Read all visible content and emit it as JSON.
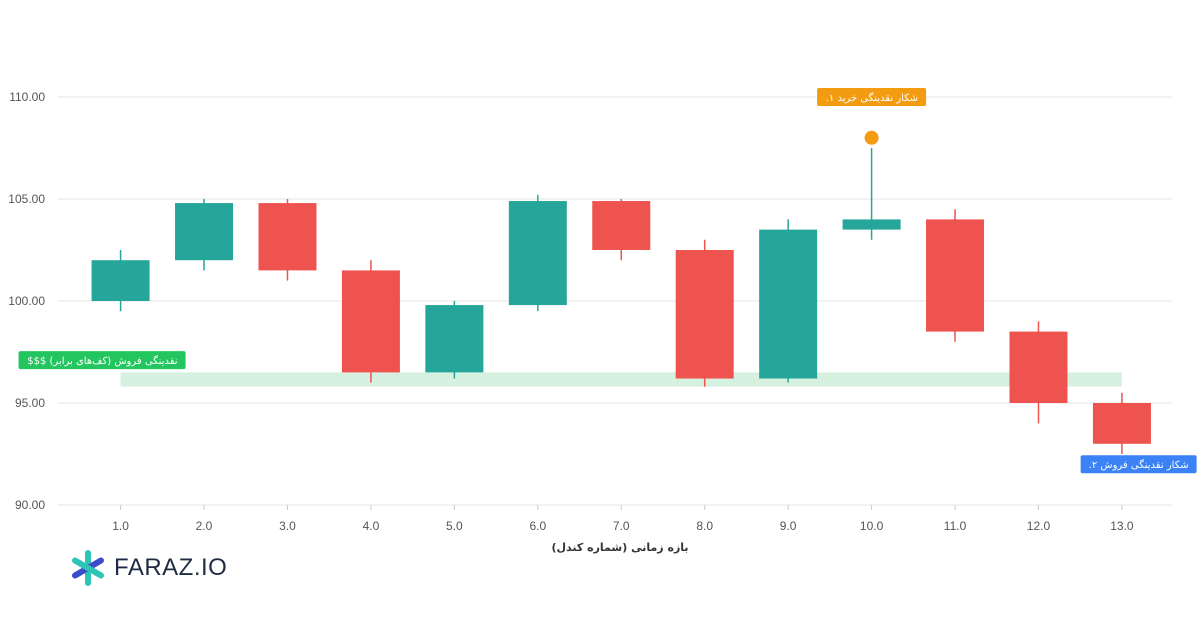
{
  "chart_data": {
    "type": "candlestick",
    "x": [
      1.0,
      2.0,
      3.0,
      4.0,
      5.0,
      6.0,
      7.0,
      8.0,
      9.0,
      10.0,
      11.0,
      12.0,
      13.0
    ],
    "x_tick_labels": [
      "1.0",
      "2.0",
      "3.0",
      "4.0",
      "5.0",
      "6.0",
      "7.0",
      "8.0",
      "9.0",
      "10.0",
      "11.0",
      "12.0",
      "13.0"
    ],
    "y_tick_labels": [
      "90.00",
      "95.00",
      "100.00",
      "105.00",
      "110.00"
    ],
    "y_ticks": [
      90,
      95,
      100,
      105,
      110
    ],
    "ylim": [
      90,
      110
    ],
    "xlim": [
      0.25,
      13.6
    ],
    "xlabel": "بازه زمانی (شماره کندل)",
    "ylabel": "",
    "grid": true,
    "candles": [
      {
        "x": 1,
        "open": 100.0,
        "high": 102.5,
        "low": 99.5,
        "close": 102.0
      },
      {
        "x": 2,
        "open": 102.0,
        "high": 105.0,
        "low": 101.5,
        "close": 104.8
      },
      {
        "x": 3,
        "open": 104.8,
        "high": 105.0,
        "low": 101.0,
        "close": 101.5
      },
      {
        "x": 4,
        "open": 101.5,
        "high": 102.0,
        "low": 96.0,
        "close": 96.5
      },
      {
        "x": 5,
        "open": 96.5,
        "high": 100.0,
        "low": 96.2,
        "close": 99.8
      },
      {
        "x": 6,
        "open": 99.8,
        "high": 105.2,
        "low": 99.5,
        "close": 104.9
      },
      {
        "x": 7,
        "open": 104.9,
        "high": 105.0,
        "low": 102.0,
        "close": 102.5
      },
      {
        "x": 8,
        "open": 102.5,
        "high": 103.0,
        "low": 95.8,
        "close": 96.2
      },
      {
        "x": 9,
        "open": 96.2,
        "high": 104.0,
        "low": 96.0,
        "close": 103.5
      },
      {
        "x": 10,
        "open": 103.5,
        "high": 107.5,
        "low": 103.0,
        "close": 104.0
      },
      {
        "x": 11,
        "open": 104.0,
        "high": 104.5,
        "low": 98.0,
        "close": 98.5
      },
      {
        "x": 12,
        "open": 98.5,
        "high": 99.0,
        "low": 94.0,
        "close": 95.0
      },
      {
        "x": 13,
        "open": 95.0,
        "high": 95.5,
        "low": 92.5,
        "close": 93.0
      }
    ],
    "up_color": "#26a69a",
    "down_color": "#ef5350",
    "zone": {
      "x_start": 1,
      "x_end": 13,
      "y_low": 95.8,
      "y_high": 96.5,
      "color": "#c8ecd4"
    },
    "marker": {
      "x": 10,
      "y": 108.0,
      "color": "#f39c12"
    },
    "annotations": [
      {
        "id": "sell-liquidity",
        "text": "نقدینگی فروش (کف‌های برابر) $$$",
        "color": "#22c55e",
        "anchor_x": 1,
        "anchor_y": 97.1,
        "align": "start"
      },
      {
        "id": "buy-hunt",
        "text": "شکار نقدینگی خرید ۱.",
        "color": "#f39c12",
        "anchor_x": 10,
        "anchor_y": 110.0,
        "align": "middle"
      },
      {
        "id": "sell-hunt",
        "text": "شکار نقدینگی فروش ۲.",
        "color": "#3b82f6",
        "anchor_x": 13.2,
        "anchor_y": 92.0,
        "align": "middle"
      }
    ]
  },
  "logo": {
    "text": "FARAZ.IO",
    "colors": [
      "#2ec4b6",
      "#3b4cca"
    ]
  }
}
